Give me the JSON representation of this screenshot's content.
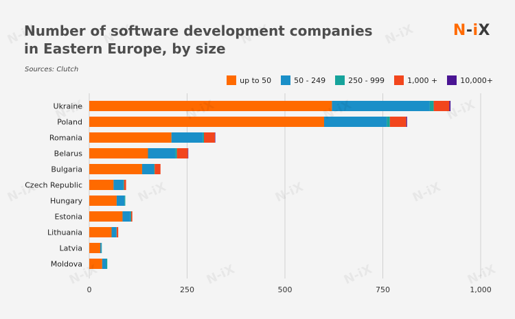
{
  "header": {
    "title_line1": "Number of software development companies",
    "title_line2": "in Eastern Europe, by size",
    "source": "Sources: Clutch",
    "brand": {
      "n": "N",
      "dash": "-",
      "i": "i",
      "x": "X"
    }
  },
  "chart_data": {
    "type": "bar",
    "orientation": "horizontal",
    "stacked": true,
    "categories": [
      "Ukraine",
      "Poland",
      "Romania",
      "Belarus",
      "Bulgaria",
      "Czech Republic",
      "Hungary",
      "Estonia",
      "Lithuania",
      "Latvia",
      "Moldova"
    ],
    "series": [
      {
        "name": "up to 50",
        "color": "#ff6a00",
        "values": [
          620,
          600,
          210,
          150,
          135,
          62,
          70,
          85,
          57,
          28,
          33
        ]
      },
      {
        "name": "50 - 249",
        "color": "#1a8fc8",
        "values": [
          250,
          160,
          80,
          70,
          30,
          25,
          20,
          20,
          12,
          3,
          10
        ]
      },
      {
        "name": "250 - 999",
        "color": "#16a39b",
        "values": [
          10,
          8,
          3,
          4,
          2,
          2,
          2,
          2,
          1,
          1,
          3
        ]
      },
      {
        "name": "1,000 +",
        "color": "#f2461d",
        "values": [
          40,
          42,
          28,
          28,
          15,
          5,
          0,
          3,
          4,
          0,
          0
        ]
      },
      {
        "name": "10,000+",
        "color": "#4a1593",
        "values": [
          3,
          2,
          1,
          1,
          0,
          0,
          0,
          0,
          0,
          0,
          0
        ]
      }
    ],
    "xticks": [
      "0",
      "250",
      "500",
      "750",
      "1,000"
    ],
    "xtick_values": [
      0,
      250,
      500,
      750,
      1000
    ],
    "xlim": [
      0,
      1000
    ],
    "grid": true,
    "legend": "top-right"
  }
}
